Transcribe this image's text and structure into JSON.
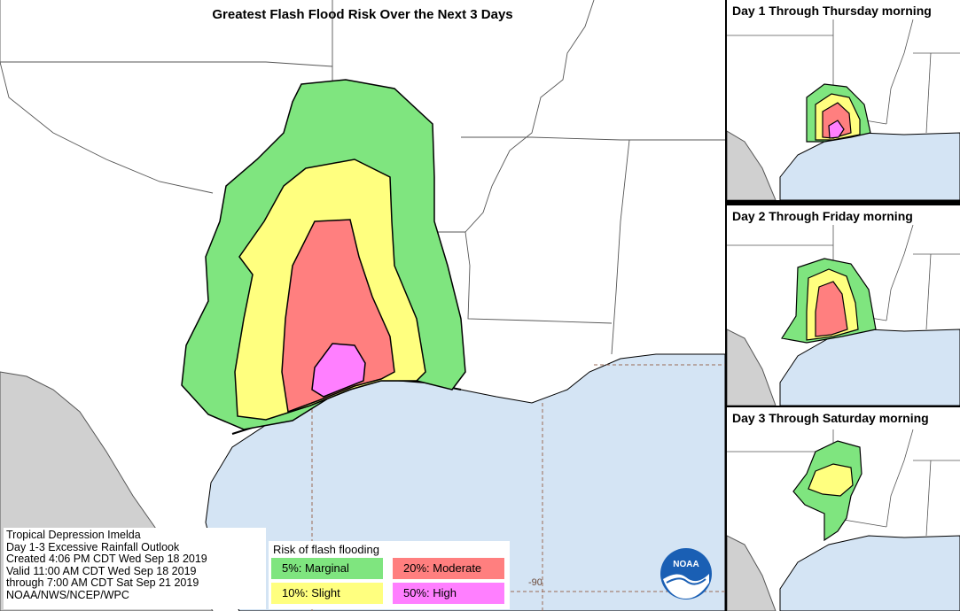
{
  "main": {
    "title": "Greatest Flash Flood Risk Over the Next 3 Days",
    "lon_label": "-90"
  },
  "info": {
    "lines": [
      "Tropical Depression Imelda",
      "Day 1-3 Excessive Rainfall Outlook",
      "Created 4:06 PM CDT Wed Sep 18 2019",
      "Valid 11:00 AM CDT Wed Sep 18 2019",
      "through 7:00 AM CDT Sat Sep 21 2019",
      "NOAA/NWS/NCEP/WPC"
    ]
  },
  "legend": {
    "title": "Risk of flash flooding",
    "items": [
      {
        "label": "5%: Marginal",
        "color": "#7fe57f"
      },
      {
        "label": "20%: Moderate",
        "color": "#ff7f7f"
      },
      {
        "label": "10%: Slight",
        "color": "#ffff7f"
      },
      {
        "label": "50%: High",
        "color": "#ff7fff"
      }
    ]
  },
  "panels": [
    {
      "title": "Day 1 Through Thursday morning"
    },
    {
      "title": "Day 2 Through Friday morning"
    },
    {
      "title": "Day 3 Through Saturday morning"
    }
  ],
  "logo": {
    "text": "NOAA",
    "icon": "noaa-logo-icon"
  },
  "colors": {
    "water": "#d4e4f4",
    "mexico": "#d0d0d0",
    "marginal": "#7fe57f",
    "slight": "#ffff7f",
    "moderate": "#ff7f7f",
    "high": "#ff7fff"
  }
}
